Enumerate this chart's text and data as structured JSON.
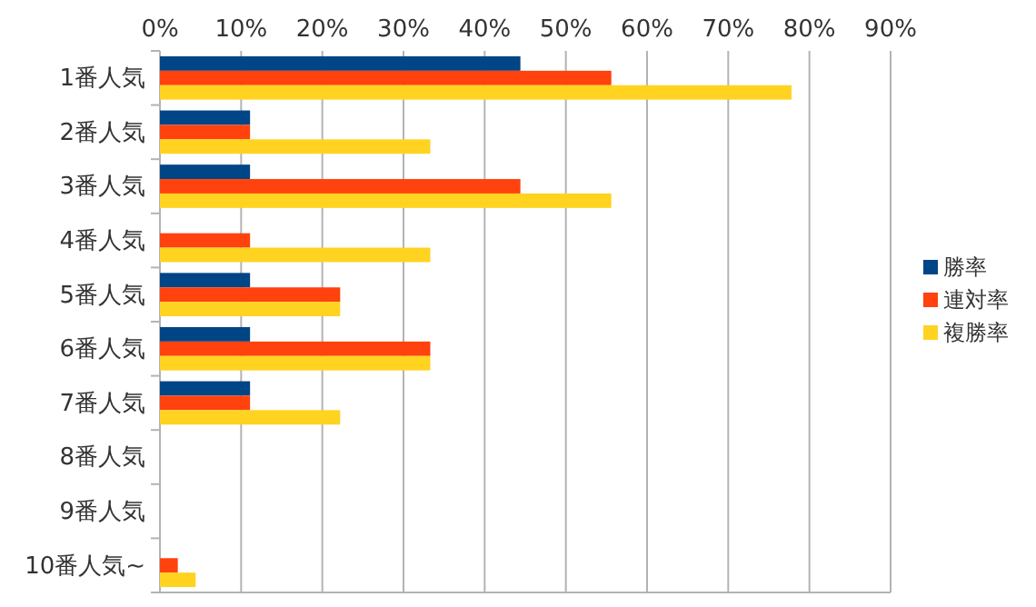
{
  "chart_data": {
    "type": "bar",
    "orientation": "horizontal",
    "categories": [
      "1番人気",
      "2番人気",
      "3番人気",
      "4番人気",
      "5番人気",
      "6番人気",
      "7番人気",
      "8番人気",
      "9番人気",
      "10番人気~"
    ],
    "series": [
      {
        "name": "勝率",
        "color": "#004586",
        "values": [
          44.4,
          11.1,
          11.1,
          0,
          11.1,
          11.1,
          11.1,
          0,
          0,
          0
        ]
      },
      {
        "name": "連対率",
        "color": "#ff420e",
        "values": [
          55.6,
          11.1,
          44.4,
          11.1,
          22.2,
          33.3,
          11.1,
          0,
          0,
          2.2
        ]
      },
      {
        "name": "複勝率",
        "color": "#ffd320",
        "values": [
          77.8,
          33.3,
          55.6,
          33.3,
          22.2,
          33.3,
          22.2,
          0,
          0,
          4.4
        ]
      }
    ],
    "xlim": [
      0,
      90
    ],
    "xticks": [
      {
        "value": 0,
        "label": "0%"
      },
      {
        "value": 10,
        "label": "10%"
      },
      {
        "value": 20,
        "label": "20%"
      },
      {
        "value": 30,
        "label": "30%"
      },
      {
        "value": 40,
        "label": "40%"
      },
      {
        "value": 50,
        "label": "50%"
      },
      {
        "value": 60,
        "label": "60%"
      },
      {
        "value": 70,
        "label": "70%"
      },
      {
        "value": 80,
        "label": "80%"
      },
      {
        "value": 90,
        "label": "90%"
      }
    ],
    "grid": "x",
    "legend": "right"
  }
}
